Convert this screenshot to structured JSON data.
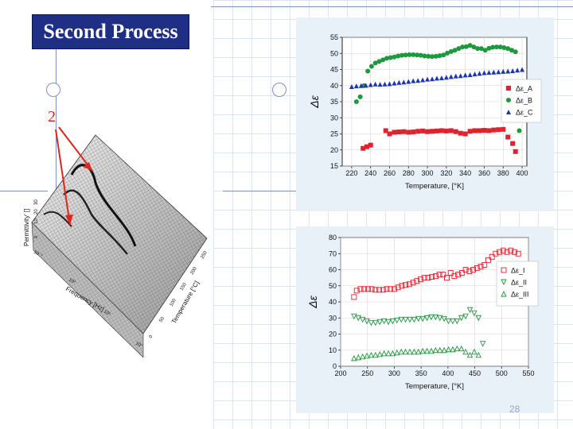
{
  "slide": {
    "title": "Second Process",
    "marker": "2",
    "page_number": "28"
  },
  "surface": {
    "z_label": "Permittivity' []",
    "z_ticks": [
      "0",
      "10",
      "20",
      "30"
    ],
    "freq_label": "Frequency [Hz]",
    "freq_ticks": [
      "10⁻¹",
      "10²",
      "10⁵",
      "10⁷"
    ],
    "temp_label": "Temperature [°C]",
    "temp_ticks": [
      "0",
      "50",
      "100",
      "150",
      "200",
      "250"
    ]
  },
  "chart_data": [
    {
      "type": "scatter",
      "xlabel": "Temperature, [°K]",
      "ylabel": "Δε",
      "xlim": [
        210,
        405
      ],
      "ylim": [
        15,
        55
      ],
      "xticks": [
        220,
        240,
        260,
        280,
        300,
        320,
        340,
        360,
        380,
        400
      ],
      "yticks": [
        15,
        20,
        25,
        30,
        35,
        40,
        45,
        50,
        55
      ],
      "legend_position": "right",
      "series": [
        {
          "name": "Δε_A",
          "color": "#e0212e",
          "marker": "square",
          "x": [
            232,
            236,
            240,
            256,
            260,
            265,
            270,
            275,
            280,
            285,
            290,
            295,
            300,
            305,
            310,
            315,
            320,
            325,
            330,
            335,
            340,
            345,
            350,
            355,
            360,
            365,
            370,
            375,
            380,
            385,
            390,
            393
          ],
          "y": [
            20.5,
            21,
            21.5,
            26,
            25,
            25.5,
            25.6,
            25.7,
            25.5,
            25.6,
            25.8,
            25.9,
            25.7,
            25.8,
            25.9,
            26,
            25.9,
            26,
            25.7,
            25.2,
            25,
            25.8,
            26,
            26,
            26.1,
            26,
            26.2,
            26.3,
            26.4,
            24,
            22,
            19.5
          ]
        },
        {
          "name": "Δε_B",
          "color": "#1a9a3a",
          "marker": "circle",
          "x": [
            225,
            229,
            233,
            237,
            241,
            245,
            249,
            253,
            257,
            261,
            265,
            269,
            273,
            277,
            281,
            285,
            289,
            293,
            297,
            301,
            305,
            309,
            313,
            317,
            321,
            325,
            329,
            333,
            337,
            341,
            345,
            349,
            353,
            357,
            361,
            365,
            369,
            373,
            377,
            381,
            385,
            389,
            393,
            397
          ],
          "y": [
            35,
            36.5,
            40,
            44.5,
            46,
            47,
            47.5,
            48,
            48.5,
            48.7,
            48.9,
            49.2,
            49.4,
            49.5,
            49.6,
            49.6,
            49.5,
            49.4,
            49.2,
            49.1,
            49,
            49.1,
            49.3,
            49.5,
            50.1,
            50.6,
            51,
            51.5,
            52,
            52.1,
            52.5,
            52,
            51.5,
            51.5,
            51,
            51.6,
            51.9,
            52,
            52,
            51.8,
            51.5,
            51,
            50.5,
            26
          ]
        },
        {
          "name": "Δε_C",
          "color": "#1a35b8",
          "marker": "triangle",
          "x": [
            220,
            225,
            230,
            235,
            240,
            245,
            250,
            255,
            260,
            265,
            270,
            275,
            280,
            285,
            290,
            295,
            300,
            305,
            310,
            315,
            320,
            325,
            330,
            335,
            340,
            345,
            350,
            355,
            360,
            365,
            370,
            375,
            380,
            385,
            390,
            395,
            400
          ],
          "y": [
            39.7,
            39.9,
            40,
            40.1,
            40.3,
            40.5,
            40.4,
            40.5,
            40.6,
            40.8,
            41,
            41.1,
            41.3,
            41.5,
            41.6,
            41.8,
            42,
            42.1,
            42.3,
            42.4,
            42.6,
            42.8,
            43,
            43.1,
            43.3,
            43.4,
            43.6,
            43.8,
            44,
            44.1,
            44.2,
            44.3,
            44.4,
            44.5,
            44.6,
            44.8,
            45
          ]
        }
      ]
    },
    {
      "type": "scatter",
      "xlabel": "Temperature, [°K]",
      "ylabel": "Δε",
      "xlim": [
        200,
        550
      ],
      "ylim": [
        0,
        80
      ],
      "xticks": [
        200,
        250,
        300,
        350,
        400,
        450,
        500,
        550
      ],
      "yticks": [
        0,
        10,
        20,
        30,
        40,
        50,
        60,
        70,
        80
      ],
      "legend_position": "right",
      "series": [
        {
          "name": "Δε_I",
          "color": "#e0212e",
          "marker": "open-square",
          "x": [
            225,
            230,
            237,
            244,
            251,
            258,
            265,
            272,
            279,
            286,
            293,
            300,
            307,
            314,
            321,
            328,
            335,
            342,
            349,
            356,
            363,
            370,
            377,
            384,
            391,
            398,
            405,
            412,
            419,
            426,
            433,
            440,
            447,
            454,
            461,
            468,
            475,
            482,
            489,
            496,
            503,
            510,
            517,
            524,
            531
          ],
          "y": [
            43,
            47,
            48,
            48,
            48,
            48,
            47.5,
            47.5,
            47.5,
            48,
            48,
            48,
            49,
            50,
            50.5,
            51,
            52,
            53,
            54,
            55,
            55,
            55.5,
            56,
            57,
            57,
            55,
            58,
            56,
            57,
            58,
            60,
            59,
            60,
            61,
            62,
            63,
            66,
            68,
            70,
            71,
            72,
            71,
            72,
            71,
            70
          ]
        },
        {
          "name": "Δε_II",
          "color": "#1a9a3a",
          "marker": "open-triangle-down",
          "x": [
            225,
            233,
            241,
            249,
            257,
            265,
            273,
            281,
            289,
            297,
            305,
            313,
            321,
            329,
            337,
            345,
            353,
            361,
            369,
            377,
            385,
            393,
            401,
            409,
            417,
            425,
            433,
            441,
            449,
            457,
            465
          ],
          "y": [
            31,
            30,
            29,
            28,
            27,
            27,
            27.5,
            28,
            27.5,
            28,
            28.5,
            29,
            29,
            29,
            29,
            29.5,
            29.5,
            30,
            30.5,
            30.5,
            30,
            29.5,
            28,
            28,
            28,
            30,
            31,
            35,
            33,
            30,
            14
          ]
        },
        {
          "name": "Δε_III",
          "color": "#1a9a3a",
          "marker": "open-triangle-up",
          "x": [
            225,
            233,
            241,
            249,
            257,
            265,
            273,
            281,
            289,
            297,
            305,
            313,
            321,
            329,
            337,
            345,
            353,
            361,
            369,
            377,
            385,
            393,
            401,
            409,
            417,
            425,
            433,
            441,
            449,
            457
          ],
          "y": [
            5,
            5.5,
            6,
            6.5,
            7,
            7,
            7.5,
            8,
            8,
            8,
            8.5,
            9,
            9,
            9,
            9,
            9,
            9.5,
            9.5,
            9.5,
            10,
            10,
            10,
            10.5,
            10.5,
            11,
            11,
            9,
            7,
            9,
            7
          ]
        }
      ]
    }
  ]
}
